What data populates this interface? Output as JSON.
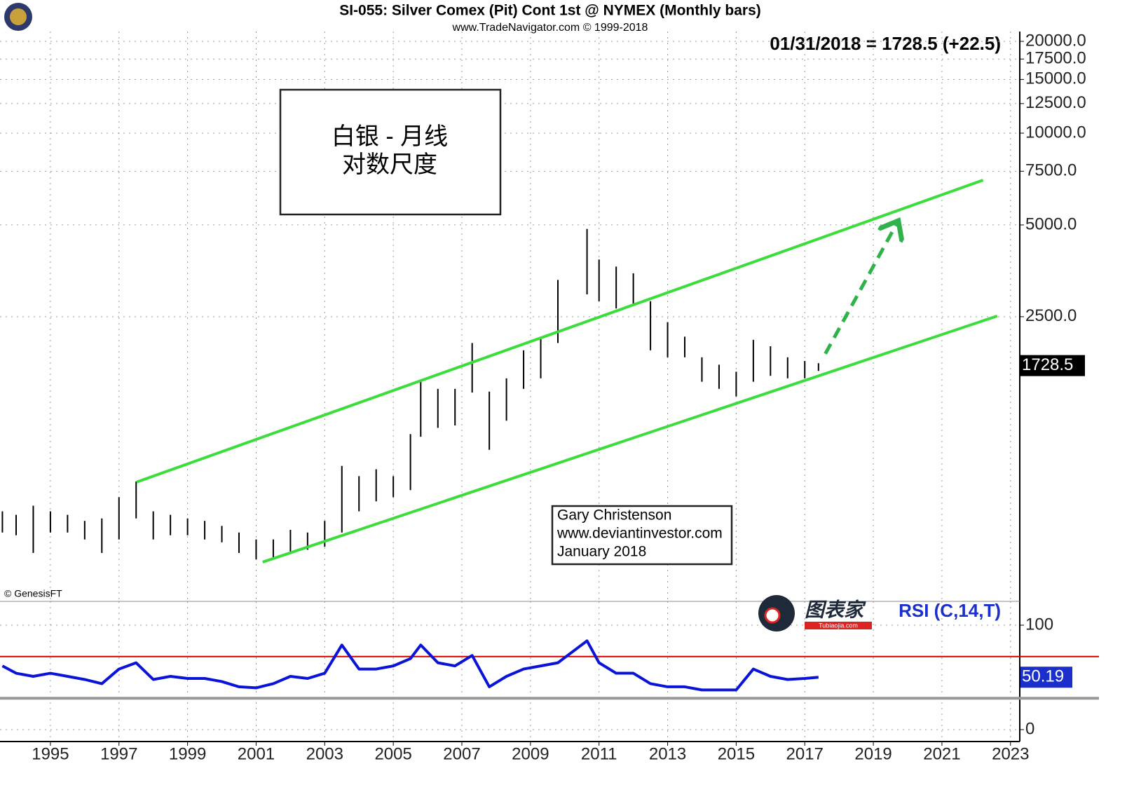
{
  "chart_data": [
    {
      "type": "hilo",
      "title": "SI-055:  Silver Comex (Pit) Cont 1st @ NYMEX  (Monthly bars)",
      "subtitle": "www.TradeNavigator.com © 1999-2018",
      "last_quote": "01/31/2018 = 1728.5 (+22.5)",
      "last_value": 1728.5,
      "box_text": [
        "白银 - 月线",
        "对数尺度"
      ],
      "credit": [
        "Gary Christenson",
        "www.deviantinvestor.com",
        "January 2018"
      ],
      "source": "© GenesisFT",
      "color": "#000000",
      "log_scale": true,
      "grid": true,
      "x": [
        1993.6,
        1994.0,
        1994.5,
        1995.0,
        1995.5,
        1996.0,
        1996.5,
        1997.0,
        1997.5,
        1998.0,
        1998.5,
        1999.0,
        1999.5,
        2000.0,
        2000.5,
        2001.0,
        2001.5,
        2002.0,
        2002.5,
        2003.0,
        2003.5,
        2004.0,
        2004.5,
        2005.0,
        2005.5,
        2005.8,
        2006.3,
        2006.8,
        2007.3,
        2007.8,
        2008.3,
        2008.8,
        2009.3,
        2009.8,
        2010.65,
        2011.0,
        2011.5,
        2012.0,
        2012.5,
        2013.0,
        2013.5,
        2014.0,
        2014.5,
        2015.0,
        2015.5,
        2016.0,
        2016.5,
        2017.0,
        2017.4
      ],
      "high": [
        575,
        560,
        600,
        575,
        560,
        535,
        545,
        640,
        720,
        575,
        560,
        545,
        535,
        515,
        490,
        465,
        465,
        500,
        490,
        535,
        810,
        750,
        790,
        750,
        1030,
        1530,
        1450,
        1450,
        2050,
        1420,
        1570,
        1940,
        2150,
        3300,
        4850,
        3850,
        3650,
        3470,
        2810,
        2400,
        2150,
        1840,
        1740,
        1650,
        2100,
        2000,
        1840,
        1790,
        1760
      ],
      "low": [
        490,
        480,
        420,
        490,
        490,
        465,
        420,
        465,
        545,
        465,
        480,
        480,
        465,
        455,
        420,
        400,
        405,
        420,
        430,
        440,
        490,
        575,
        620,
        640,
        675,
        1010,
        1080,
        1100,
        1410,
        915,
        1140,
        1450,
        1570,
        2050,
        2960,
        2810,
        2660,
        2740,
        1940,
        1840,
        1840,
        1530,
        1450,
        1370,
        1530,
        1600,
        1570,
        1570,
        1660
      ],
      "trendlines": [
        {
          "x": [
            1997.51,
            2022.2
          ],
          "values": [
            717,
            7015
          ],
          "color": "#3ddc3d"
        },
        {
          "x": [
            2001.19,
            2022.61
          ],
          "values": [
            392,
            2513
          ],
          "color": "#3ddc3d"
        }
      ],
      "arrow": {
        "x": [
          2017.6,
          2019.68
        ],
        "values": [
          1890,
          5045
        ],
        "color": "#2fb24a"
      },
      "xlim": [
        1993.53,
        2023.27
      ],
      "ylim": [
        296,
        21540
      ],
      "yticks": [
        {
          "value": 2500,
          "label": "2500.0"
        },
        {
          "value": 5000,
          "label": "5000.0"
        },
        {
          "value": 7500,
          "label": "7500.0"
        },
        {
          "value": 10000,
          "label": "10000.0"
        },
        {
          "value": 12500,
          "label": "12500.0"
        },
        {
          "value": 15000,
          "label": "15000.0"
        },
        {
          "value": 17500,
          "label": "17500.0"
        },
        {
          "value": 20000,
          "label": "20000.0"
        }
      ]
    },
    {
      "type": "line",
      "title": "RSI (C,14,T)",
      "watermark": "图表家",
      "watermark_sub": "Tubiaojia.com",
      "color": "#0a14d8",
      "last_value": 50.19,
      "x": [
        1993.6,
        1994.0,
        1994.5,
        1995.0,
        1995.5,
        1996.0,
        1996.5,
        1997.0,
        1997.5,
        1998.0,
        1998.5,
        1999.0,
        1999.5,
        2000.0,
        2000.5,
        2001.0,
        2001.5,
        2002.0,
        2002.5,
        2003.0,
        2003.5,
        2004.0,
        2004.5,
        2005.0,
        2005.5,
        2005.8,
        2006.3,
        2006.8,
        2007.3,
        2007.8,
        2008.3,
        2008.8,
        2009.3,
        2009.8,
        2010.65,
        2011.0,
        2011.5,
        2012.0,
        2012.5,
        2013.0,
        2013.5,
        2014.0,
        2014.5,
        2015.0,
        2015.5,
        2016.0,
        2016.5,
        2017.0,
        2017.4
      ],
      "values": [
        61,
        54,
        51,
        54,
        51,
        48,
        44,
        58,
        64,
        48,
        51,
        49,
        49,
        46,
        41,
        40,
        44,
        51,
        49,
        54,
        81,
        58,
        58,
        61,
        68,
        81,
        64,
        61,
        71,
        41,
        51,
        58,
        61,
        64,
        85,
        64,
        54,
        54,
        44,
        41,
        41,
        38,
        38,
        38,
        58,
        51,
        48,
        49,
        50.19
      ],
      "hlines": [
        {
          "value": 70,
          "color": "#cc0000"
        },
        {
          "value": 30,
          "color": "#999999"
        }
      ],
      "grid": true,
      "xlim": [
        1993.53,
        2023.27
      ],
      "ylim": [
        -11.4,
        122.8
      ],
      "yticks": [
        0,
        100
      ],
      "xticks": [
        1995,
        1997,
        1999,
        2001,
        2003,
        2005,
        2007,
        2009,
        2011,
        2013,
        2015,
        2017,
        2019,
        2021,
        2023
      ]
    }
  ]
}
